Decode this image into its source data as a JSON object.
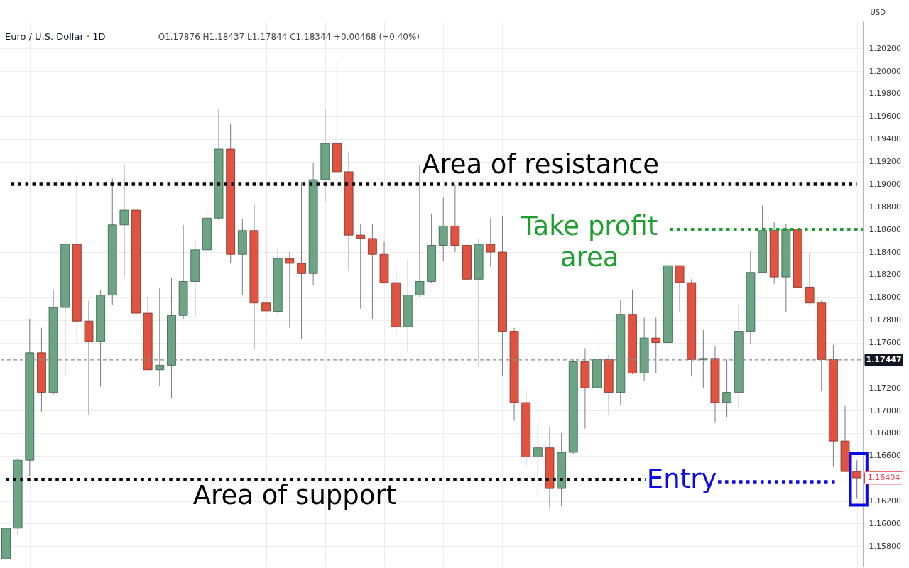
{
  "chart_data": {
    "type": "candlestick",
    "title": "Euro / U.S. Dollar · 1D",
    "subtitle": "O1.17876 H1.18437 L1.17844 C1.18344 +0.00468 (+0.40%)",
    "ylabel": "USD",
    "categories": [
      null,
      null,
      null,
      null,
      null,
      null,
      null,
      null,
      null,
      null,
      null,
      null,
      null,
      null,
      null,
      null,
      null,
      null,
      null,
      null,
      null,
      null,
      null,
      null,
      null,
      null,
      null,
      null,
      null,
      null,
      null,
      null,
      null,
      null,
      null,
      null,
      null,
      null,
      null,
      null,
      null,
      null,
      null,
      null,
      null,
      null,
      null,
      null,
      null,
      null,
      null,
      null,
      null,
      null,
      null,
      null,
      null,
      null,
      null,
      null,
      null,
      null,
      null,
      null,
      null,
      null,
      null,
      null,
      null,
      null,
      null,
      null,
      null
    ],
    "ohlc": [
      [
        1.1569,
        1.1627,
        1.1564,
        1.1596
      ],
      [
        1.1596,
        1.1658,
        1.159,
        1.1656
      ],
      [
        1.1656,
        1.1781,
        1.1642,
        1.1751
      ],
      [
        1.1751,
        1.1773,
        1.1699,
        1.1716
      ],
      [
        1.1716,
        1.1807,
        1.1714,
        1.1791
      ],
      [
        1.1791,
        1.1849,
        1.1731,
        1.1847
      ],
      [
        1.1847,
        1.1908,
        1.1761,
        1.1779
      ],
      [
        1.1779,
        1.1797,
        1.1696,
        1.1761
      ],
      [
        1.1761,
        1.1806,
        1.1721,
        1.1802
      ],
      [
        1.1802,
        1.1905,
        1.1793,
        1.1864
      ],
      [
        1.1864,
        1.1917,
        1.1818,
        1.1877
      ],
      [
        1.1877,
        1.1883,
        1.1755,
        1.1786
      ],
      [
        1.1786,
        1.18,
        1.1736,
        1.1736
      ],
      [
        1.1736,
        1.1808,
        1.1722,
        1.174
      ],
      [
        1.174,
        1.1817,
        1.1711,
        1.1784
      ],
      [
        1.1784,
        1.1864,
        1.1781,
        1.1814
      ],
      [
        1.1814,
        1.185,
        1.1782,
        1.1842
      ],
      [
        1.1842,
        1.1881,
        1.1829,
        1.187
      ],
      [
        1.187,
        1.1966,
        1.1868,
        1.1931
      ],
      [
        1.1931,
        1.1953,
        1.183,
        1.1838
      ],
      [
        1.1838,
        1.1869,
        1.1802,
        1.1859
      ],
      [
        1.1859,
        1.1882,
        1.1754,
        1.1795
      ],
      [
        1.1795,
        1.1849,
        1.1785,
        1.1788
      ],
      [
        1.17876,
        1.18437,
        1.17844,
        1.18344
      ],
      [
        1.1834,
        1.184,
        1.1773,
        1.183
      ],
      [
        1.183,
        1.1902,
        1.1763,
        1.1821
      ],
      [
        1.1821,
        1.1919,
        1.1811,
        1.1904
      ],
      [
        1.1904,
        1.1966,
        1.1884,
        1.1936
      ],
      [
        1.1936,
        1.2011,
        1.1902,
        1.1911
      ],
      [
        1.1911,
        1.1929,
        1.1823,
        1.1855
      ],
      [
        1.1855,
        1.1865,
        1.179,
        1.1852
      ],
      [
        1.1852,
        1.1865,
        1.1781,
        1.1838
      ],
      [
        1.1838,
        1.1849,
        1.1812,
        1.1813
      ],
      [
        1.1813,
        1.1827,
        1.1766,
        1.1774
      ],
      [
        1.1774,
        1.1834,
        1.1752,
        1.1802
      ],
      [
        1.1802,
        1.1917,
        1.18,
        1.1814
      ],
      [
        1.1814,
        1.1874,
        1.1813,
        1.1846
      ],
      [
        1.1846,
        1.1888,
        1.1832,
        1.1863
      ],
      [
        1.1863,
        1.19,
        1.184,
        1.1846
      ],
      [
        1.1846,
        1.1882,
        1.1788,
        1.1816
      ],
      [
        1.1816,
        1.1852,
        1.1738,
        1.1847
      ],
      [
        1.1847,
        1.187,
        1.1827,
        1.184
      ],
      [
        1.184,
        1.1872,
        1.1731,
        1.177
      ],
      [
        1.177,
        1.1773,
        1.1691,
        1.1707
      ],
      [
        1.1707,
        1.1718,
        1.1651,
        1.1659
      ],
      [
        1.1659,
        1.1687,
        1.1626,
        1.1667
      ],
      [
        1.1667,
        1.1685,
        1.1613,
        1.1631
      ],
      [
        1.1631,
        1.168,
        1.1616,
        1.1663
      ],
      [
        1.1663,
        1.1745,
        1.1662,
        1.1743
      ],
      [
        1.1743,
        1.1755,
        1.1684,
        1.172
      ],
      [
        1.172,
        1.177,
        1.1718,
        1.1745
      ],
      [
        1.1745,
        1.175,
        1.1696,
        1.1716
      ],
      [
        1.1716,
        1.1798,
        1.1705,
        1.1785
      ],
      [
        1.1785,
        1.1807,
        1.1732,
        1.1733
      ],
      [
        1.1733,
        1.1782,
        1.1726,
        1.1764
      ],
      [
        1.1764,
        1.1782,
        1.1733,
        1.176
      ],
      [
        1.176,
        1.1831,
        1.1753,
        1.1828
      ],
      [
        1.1828,
        1.1828,
        1.1787,
        1.1813
      ],
      [
        1.1813,
        1.1816,
        1.173,
        1.1745
      ],
      [
        1.1745,
        1.1771,
        1.172,
        1.1746
      ],
      [
        1.1746,
        1.1757,
        1.1689,
        1.1707
      ],
      [
        1.1707,
        1.1745,
        1.1694,
        1.1716
      ],
      [
        1.1716,
        1.1793,
        1.1703,
        1.177
      ],
      [
        1.177,
        1.1841,
        1.1759,
        1.1822
      ],
      [
        1.1822,
        1.1881,
        1.1822,
        1.1859
      ],
      [
        1.1859,
        1.1867,
        1.1812,
        1.1818
      ],
      [
        1.1818,
        1.1865,
        1.1787,
        1.186
      ],
      [
        1.186,
        1.1861,
        1.1803,
        1.1809
      ],
      [
        1.1809,
        1.1839,
        1.1793,
        1.1795
      ],
      [
        1.1795,
        1.1797,
        1.1717,
        1.1745
      ],
      [
        1.1745,
        1.1758,
        1.165,
        1.1673
      ],
      [
        1.1673,
        1.1704,
        1.1646,
        1.1646
      ],
      [
        1.1646,
        1.1656,
        1.1622,
        1.16404
      ]
    ],
    "colors": [
      "#6ba583",
      "#6ba583",
      "#6ba583",
      "#df5340",
      "#6ba583",
      "#6ba583",
      "#df5340",
      "#df5340",
      "#6ba583",
      "#6ba583",
      "#6ba583",
      "#df5340",
      "#df5340",
      "#6ba583",
      "#6ba583",
      "#6ba583",
      "#6ba583",
      "#6ba583",
      "#6ba583",
      "#df5340",
      "#6ba583",
      "#df5340",
      "#df5340",
      "#6ba583",
      "#df5340",
      "#df5340",
      "#6ba583",
      "#6ba583",
      "#df5340",
      "#df5340",
      "#df5340",
      "#df5340",
      "#df5340",
      "#df5340",
      "#6ba583",
      "#6ba583",
      "#6ba583",
      "#6ba583",
      "#df5340",
      "#df5340",
      "#6ba583",
      "#df5340",
      "#df5340",
      "#df5340",
      "#df5340",
      "#6ba583",
      "#df5340",
      "#6ba583",
      "#6ba583",
      "#df5340",
      "#6ba583",
      "#df5340",
      "#6ba583",
      "#df5340",
      "#6ba583",
      "#df5340",
      "#6ba583",
      "#df5340",
      "#df5340",
      "#6ba583",
      "#df5340",
      "#6ba583",
      "#6ba583",
      "#6ba583",
      "#6ba583",
      "#df5340",
      "#6ba583",
      "#df5340",
      "#df5340",
      "#df5340",
      "#df5340",
      "#df5340",
      "#df5340"
    ],
    "ylim": [
      1.1562,
      1.2044
    ],
    "yticks": [
      {
        "value": 1.158,
        "label": "1.15800"
      },
      {
        "value": 1.16,
        "label": "1.16000"
      },
      {
        "value": 1.162,
        "label": "1.16200"
      },
      {
        "value": 1.166,
        "label": "1.16600"
      },
      {
        "value": 1.168,
        "label": "1.16800"
      },
      {
        "value": 1.17,
        "label": "1.17000"
      },
      {
        "value": 1.172,
        "label": "1.17200"
      },
      {
        "value": 1.176,
        "label": "1.17600"
      },
      {
        "value": 1.178,
        "label": "1.17800"
      },
      {
        "value": 1.18,
        "label": "1.18000"
      },
      {
        "value": 1.182,
        "label": "1.18200"
      },
      {
        "value": 1.184,
        "label": "1.18400"
      },
      {
        "value": 1.186,
        "label": "1.18600"
      },
      {
        "value": 1.188,
        "label": "1.18800"
      },
      {
        "value": 1.19,
        "label": "1.19000"
      },
      {
        "value": 1.192,
        "label": "1.19200"
      },
      {
        "value": 1.194,
        "label": "1.19400"
      },
      {
        "value": 1.196,
        "label": "1.19600"
      },
      {
        "value": 1.198,
        "label": "1.19800"
      },
      {
        "value": 1.2,
        "label": "1.20000"
      },
      {
        "value": 1.202,
        "label": "1.20200"
      }
    ],
    "grid": true,
    "tick_labels": "y",
    "ref_lines": [
      {
        "axis": "y",
        "value": 1.19,
        "label": "Area of resistance",
        "color": "#000000",
        "line_style": "dotted"
      },
      {
        "axis": "y",
        "value": 1.186,
        "label": "Take profit area",
        "color": "#1f9e2f",
        "line_style": "dotted"
      },
      {
        "axis": "y",
        "value": 1.1639,
        "label": "Area of support",
        "color": "#000000",
        "line_style": "dotted"
      },
      {
        "axis": "y",
        "value": 1.1637,
        "label": "Entry",
        "color": "#0a0ae6",
        "line_style": "dotted"
      },
      {
        "axis": "y",
        "value": 1.17447,
        "label": "1.17447",
        "color": "#8a8d96",
        "line_style": "dashed"
      }
    ],
    "annotations": [
      "1.16404"
    ]
  }
}
